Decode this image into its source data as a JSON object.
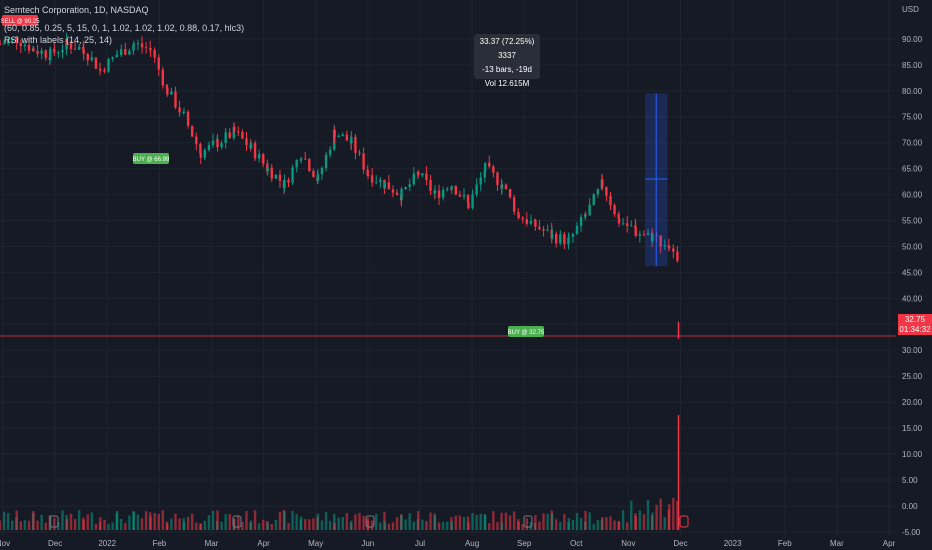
{
  "legend": {
    "title": "Semtech Corporation, 1D, NASDAQ",
    "line2": "(60, 0.85, 0.25, 5, 15, 0, 1, 1.02, 1.02, 1.02, 0.88, 0.17, hlc3)",
    "line3": "RSI with labels (14, 25, 14)"
  },
  "measure": {
    "line1": "33.37 (72.25%) 3337",
    "line2": "-13 bars, -19d",
    "line3": "Vol 12.615M"
  },
  "price_tag": {
    "value": "32.75",
    "time": "01:34:32"
  },
  "signals": [
    {
      "label": "SELL @ 90.25",
      "kind": "sell"
    },
    {
      "label": "BUY @ 66.99",
      "kind": "buy"
    },
    {
      "label": "BUY @ 32.75",
      "kind": "buy"
    }
  ],
  "chart_data": {
    "type": "candlestick",
    "y_axis_unit": "USD",
    "price_ylim": [
      -8.5,
      97.5
    ],
    "y_ticks": [
      "90.00",
      "85.00",
      "80.00",
      "75.00",
      "70.00",
      "65.00",
      "60.00",
      "55.00",
      "50.00",
      "45.00",
      "40.00",
      "35.00",
      "30.00",
      "25.00",
      "20.00",
      "15.00",
      "10.00",
      "5.00",
      "0.00",
      "-5.00"
    ],
    "x_ticks": [
      "Nov",
      "Dec",
      "2022",
      "Feb",
      "Mar",
      "Apr",
      "May",
      "Jun",
      "Jul",
      "Aug",
      "Sep",
      "Oct",
      "Nov",
      "Dec",
      "2023",
      "Feb",
      "Mar",
      "Apr"
    ],
    "current_price": 32.75,
    "x_range_days": [
      -299,
      183
    ],
    "closes": [
      [
        -299,
        89
      ],
      [
        -290,
        90
      ],
      [
        -281,
        88
      ],
      [
        -272,
        87
      ],
      [
        -263,
        89
      ],
      [
        -254,
        88
      ],
      [
        -245,
        84
      ],
      [
        -236,
        87
      ],
      [
        -227,
        89
      ],
      [
        -218,
        88
      ],
      [
        -209,
        80
      ],
      [
        -200,
        75
      ],
      [
        -191,
        68
      ],
      [
        -182,
        70
      ],
      [
        -173,
        72
      ],
      [
        -164,
        69
      ],
      [
        -155,
        65
      ],
      [
        -146,
        62
      ],
      [
        -137,
        68
      ],
      [
        -128,
        63
      ],
      [
        -119,
        72
      ],
      [
        -110,
        70
      ],
      [
        -101,
        64
      ],
      [
        -92,
        62
      ],
      [
        -83,
        60
      ],
      [
        -74,
        64
      ],
      [
        -65,
        60
      ],
      [
        -56,
        62
      ],
      [
        -47,
        58
      ],
      [
        -38,
        65
      ],
      [
        -29,
        62
      ],
      [
        -20,
        56
      ],
      [
        -11,
        54
      ],
      [
        -2,
        52
      ],
      [
        7,
        51
      ],
      [
        16,
        56
      ],
      [
        25,
        62
      ],
      [
        34,
        55
      ],
      [
        43,
        53
      ],
      [
        52,
        52
      ],
      [
        61,
        50
      ],
      [
        66,
        46
      ]
    ],
    "volume_spike": {
      "day": 66,
      "top": 17.5
    },
    "measure_range": {
      "from_day": 48,
      "to_day": 60,
      "low": 46.2,
      "high": 79.5
    }
  },
  "colors": {
    "background": "#161a25",
    "up": "#089981",
    "down": "#f23645",
    "buy": "#4caf50",
    "sell": "#f23645",
    "measure": "#2962ff"
  }
}
